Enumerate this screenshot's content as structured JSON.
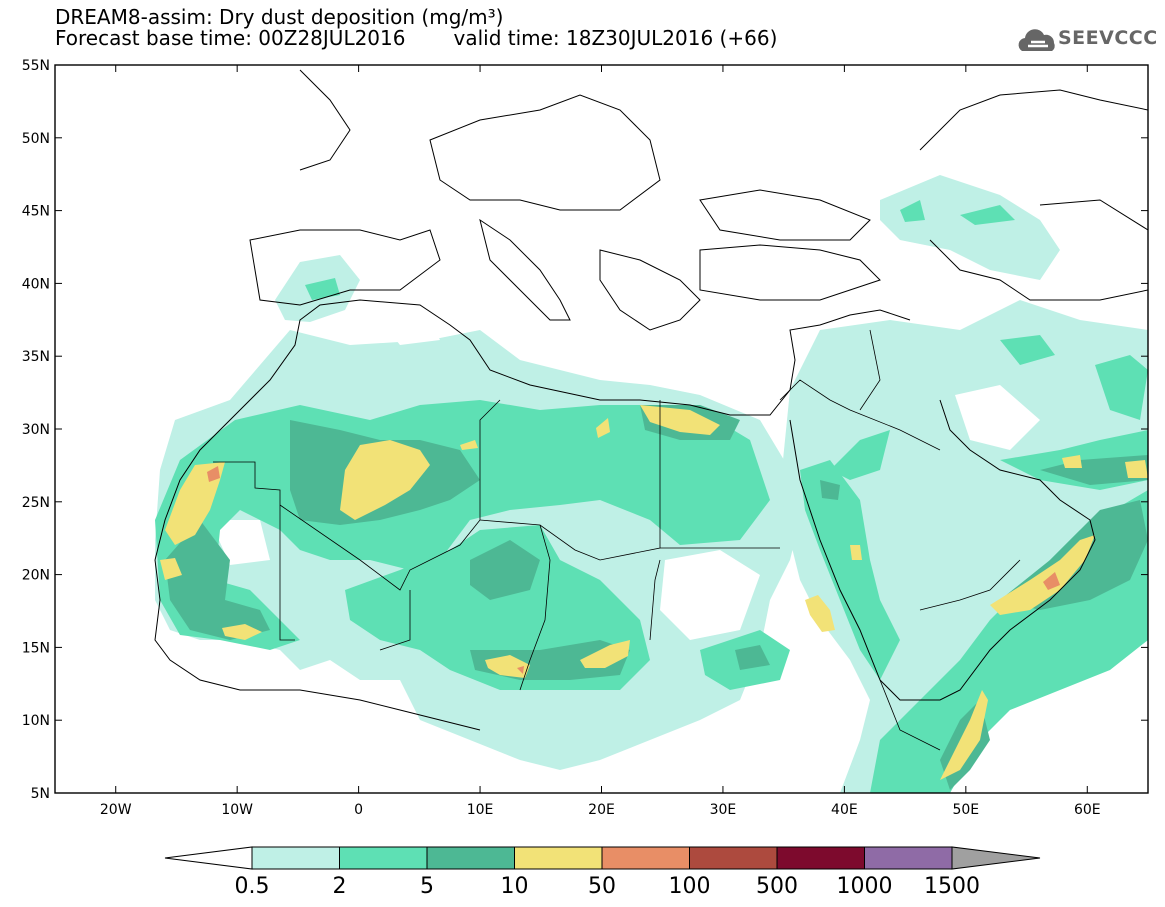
{
  "header": {
    "title_line1": "DREAM8-assim: Dry dust deposition (mg/m³)",
    "base_time": "Forecast base time: 00Z28JUL2016",
    "valid_time": "valid time: 18Z30JUL2016 (+66)",
    "logo_text": "SEEVCCC",
    "logo_icon": "cloud-icon"
  },
  "map": {
    "lat_labels": [
      "55N",
      "50N",
      "45N",
      "40N",
      "35N",
      "30N",
      "25N",
      "20N",
      "15N",
      "10N",
      "5N"
    ],
    "lon_labels": [
      "20W",
      "10W",
      "0",
      "10E",
      "20E",
      "30E",
      "40E",
      "50E",
      "60E"
    ],
    "lat_range": [
      5,
      55
    ],
    "lon_range": [
      -25,
      65
    ]
  },
  "legend": {
    "labels": [
      "0.5",
      "2",
      "5",
      "10",
      "50",
      "100",
      "500",
      "1000",
      "1500"
    ],
    "colors": [
      "#bff0e6",
      "#5ee0b4",
      "#4db894",
      "#f2e277",
      "#e88e66",
      "#ad4a3e",
      "#7d0a2d",
      "#8f6ba6"
    ],
    "under_color": "#ffffff",
    "over_color": "#a0a0a0"
  }
}
